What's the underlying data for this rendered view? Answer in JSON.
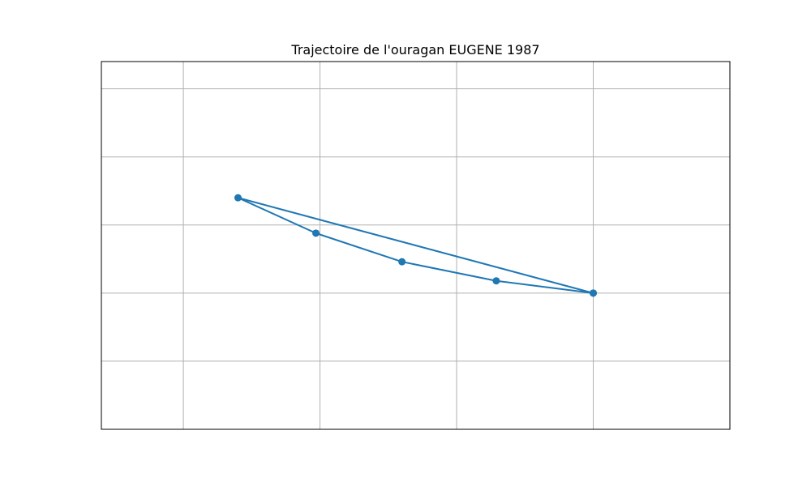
{
  "chart_data": {
    "type": "line",
    "title": "Trajectoire de l'ouragan EUGENE 1987",
    "xlabel": "",
    "ylabel": "",
    "xlim": [
      -1.6,
      3.0
    ],
    "ylim": [
      -2.0,
      0.7
    ],
    "x_gridlines": [
      -1.0,
      0.0,
      1.0,
      2.0
    ],
    "y_gridlines": [
      -1.5,
      -1.0,
      -0.5,
      0.0,
      0.5
    ],
    "grid": true,
    "series": [
      {
        "points": [
          {
            "x": 2.0,
            "y": -1.0
          },
          {
            "x": 1.29,
            "y": -0.91
          },
          {
            "x": 0.6,
            "y": -0.77
          },
          {
            "x": -0.03,
            "y": -0.56
          },
          {
            "x": -0.6,
            "y": -0.3
          },
          {
            "x": 2.0,
            "y": -1.0
          }
        ],
        "color": "#1f77b4",
        "marker": "circle"
      }
    ]
  }
}
